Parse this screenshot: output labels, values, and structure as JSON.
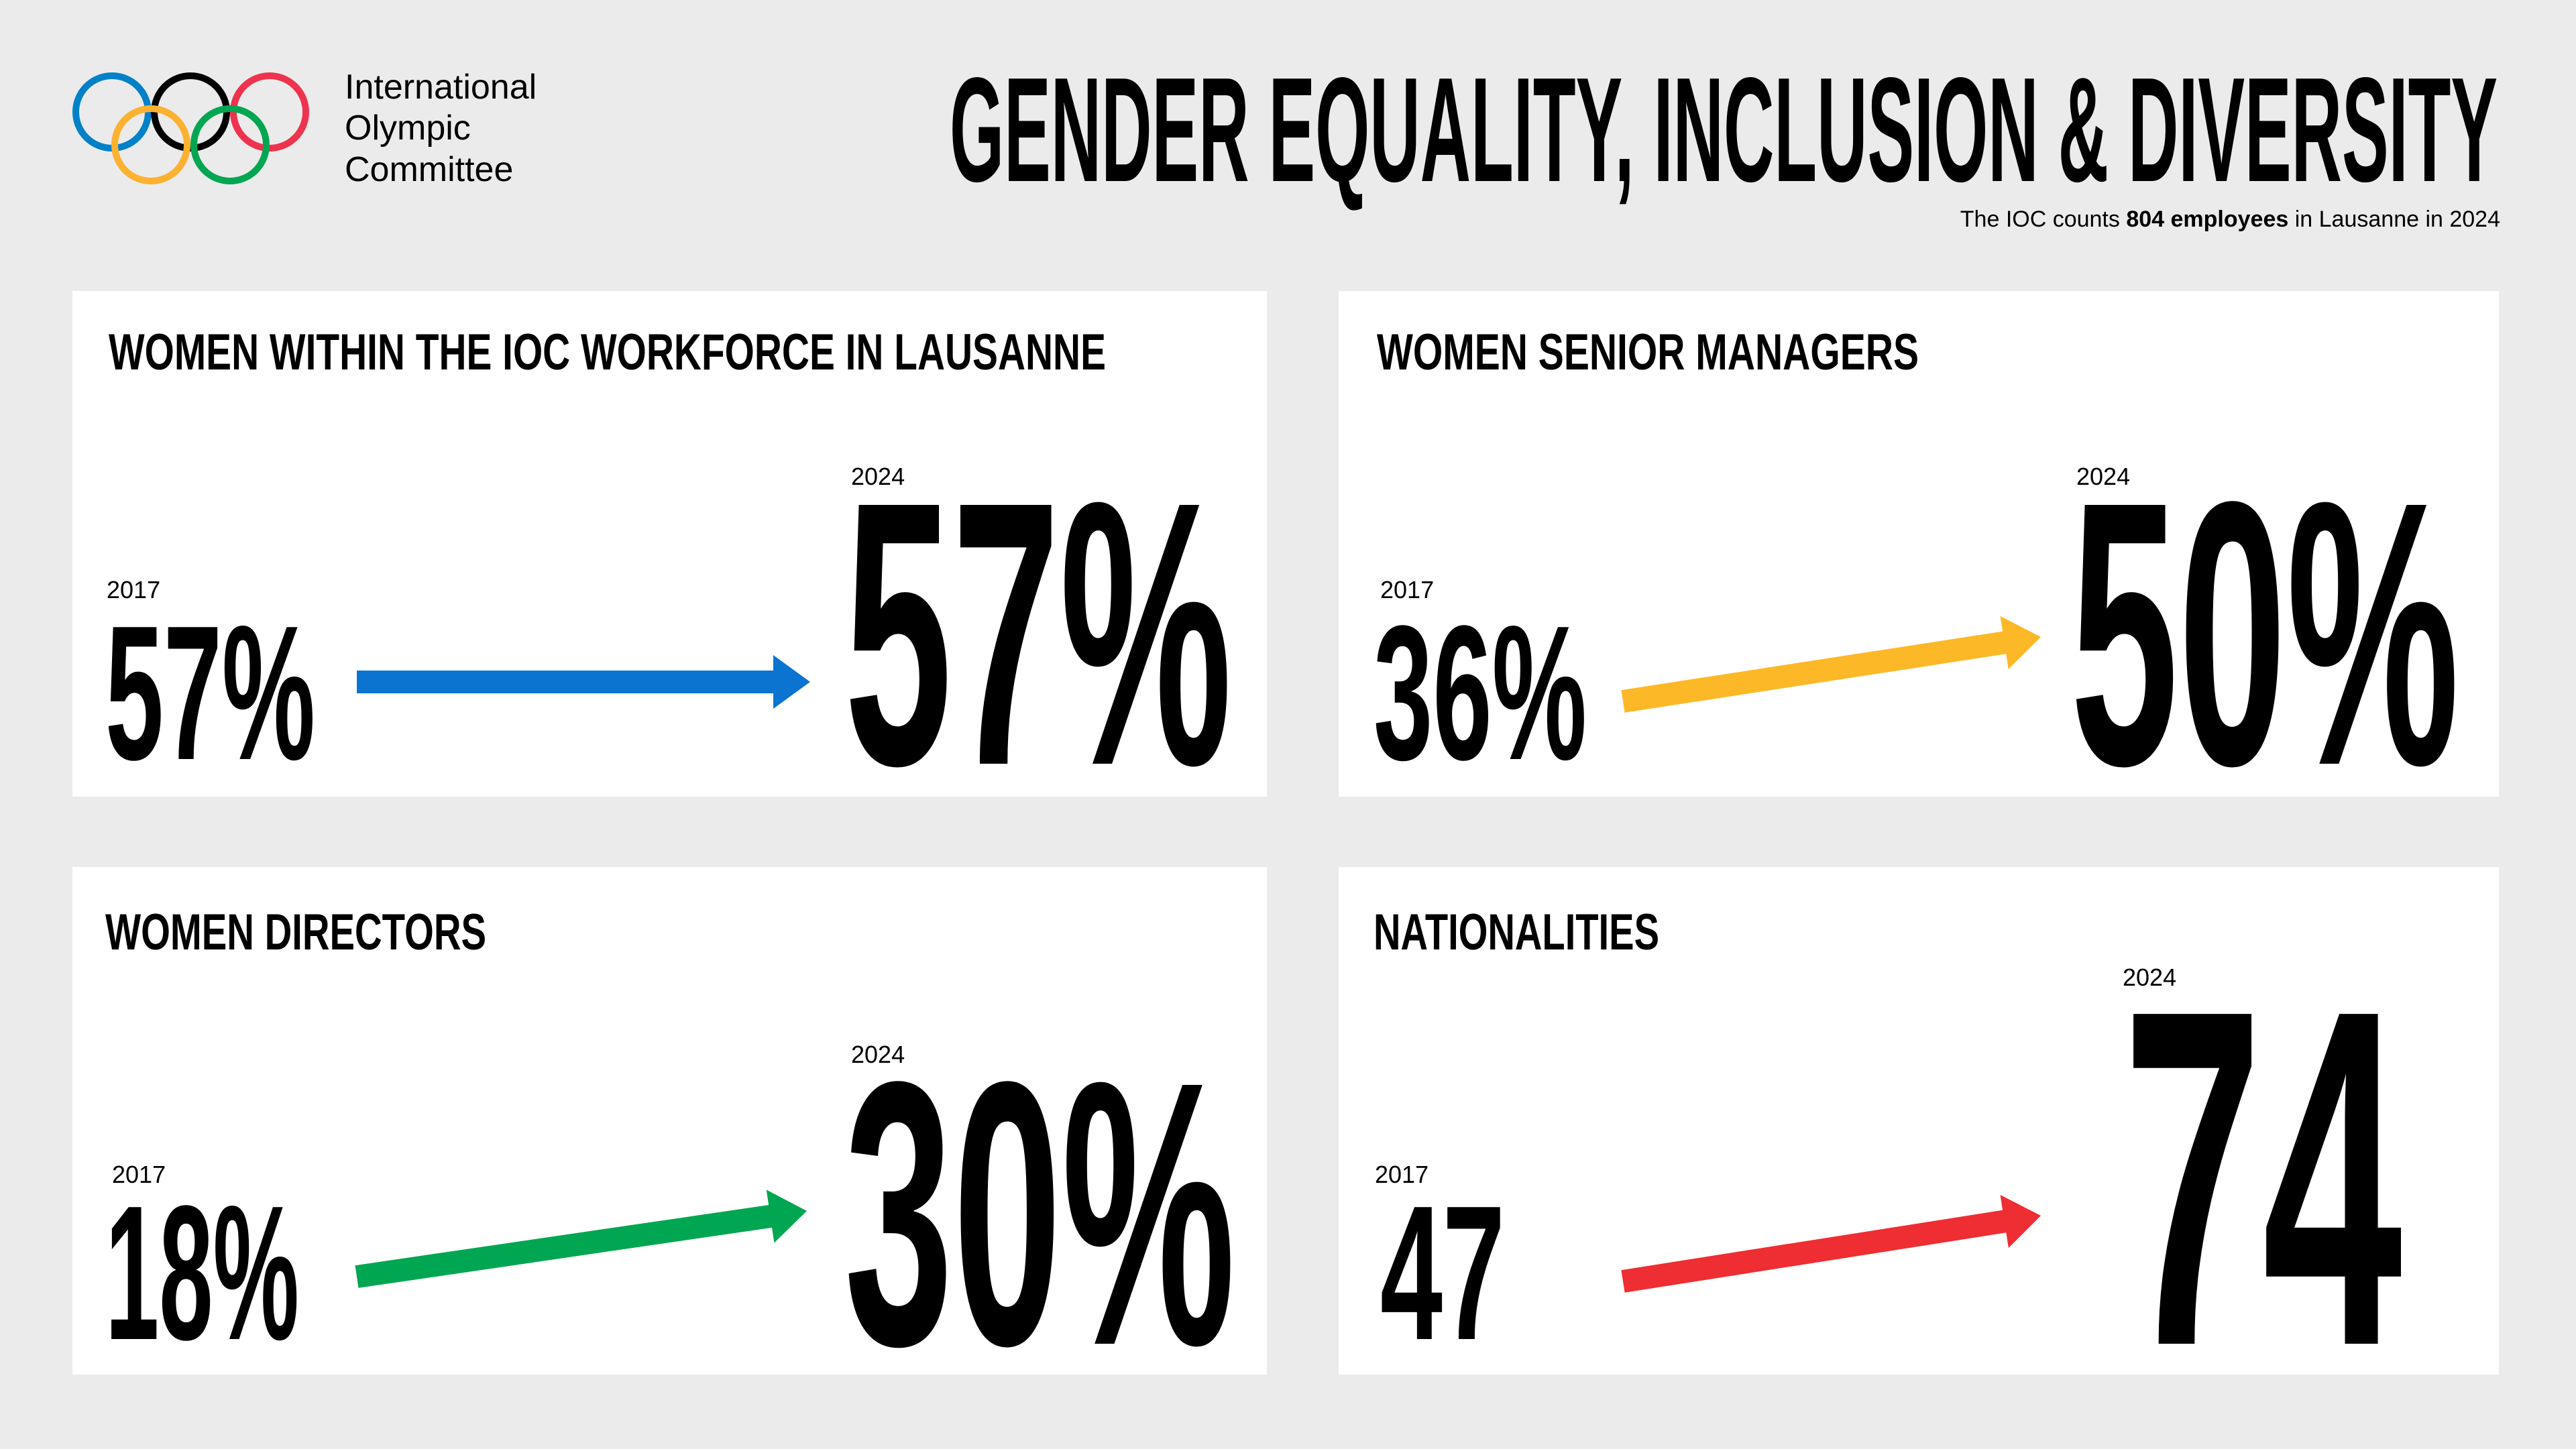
{
  "header": {
    "org_name": [
      "International",
      "Olympic",
      "Committee"
    ],
    "title": "GENDER EQUALITY, INCLUSION & DIVERSITY",
    "subtitle": {
      "before": "The IOC counts",
      "highlight": "804 employees",
      "after": "in Lausanne in 2024"
    }
  },
  "panels": [
    {
      "title": "WOMEN WITHIN THE IOC WORKFORCE IN LAUSANNE",
      "from_year": "2017",
      "from_value": "57%",
      "to_year": "2024",
      "to_value": "57%"
    },
    {
      "title": "WOMEN SENIOR MANAGERS",
      "from_year": "2017",
      "from_value": "36%",
      "to_year": "2024",
      "to_value": "50%"
    },
    {
      "title": "WOMEN DIRECTORS",
      "from_year": "2017",
      "from_value": "18%",
      "to_year": "2024",
      "to_value": "30%"
    },
    {
      "title": "NATIONALITIES",
      "from_year": "2017",
      "from_value": "47",
      "to_year": "2024",
      "to_value": "74"
    }
  ]
}
